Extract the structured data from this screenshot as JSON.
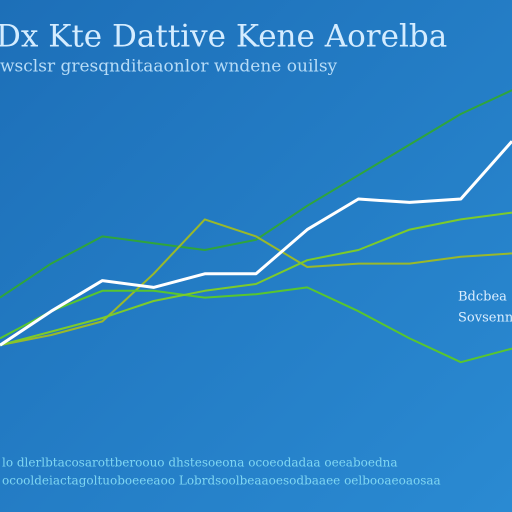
{
  "chart_data": {
    "type": "line",
    "title": "Dx Kte Dattive Kene Aorelba",
    "subtitle": "wsclsr gresqnditaaonlor wndene ouilsy",
    "annotation": [
      "Bdcbea",
      "Sovsenn"
    ],
    "footnotes": [
      "lo dlerlbtacosarottberoouo  dhstesoeona ocoeodadaa oeeaboedna",
      "ocooldeiactagoltuoboeeeaoo Lobrdsoolbeaaoesodbaaee oelbooaeoaosaa"
    ],
    "categories": [
      null,
      null,
      null,
      null,
      null,
      null,
      null,
      null,
      null,
      null,
      null
    ],
    "ylim": [
      0,
      100
    ],
    "series": [
      {
        "color": "#2fa53c",
        "values": [
          36,
          46,
          54,
          52,
          50,
          53,
          63,
          72,
          81,
          90,
          97
        ]
      },
      {
        "color": "#9ab92a",
        "values": [
          22,
          25,
          29,
          43,
          59,
          54,
          45,
          46,
          46,
          48,
          49
        ]
      },
      {
        "color": "#58c62e",
        "values": [
          24,
          32,
          38,
          38,
          36,
          37,
          39,
          32,
          24,
          17,
          21
        ]
      },
      {
        "color": "#7dcb2a",
        "values": [
          22,
          26,
          30,
          35,
          38,
          40,
          47,
          50,
          56,
          59,
          61
        ]
      },
      {
        "color": "#ffffff",
        "values": [
          22,
          32,
          41,
          39,
          43,
          43,
          56,
          65,
          64,
          65,
          82
        ]
      }
    ]
  }
}
